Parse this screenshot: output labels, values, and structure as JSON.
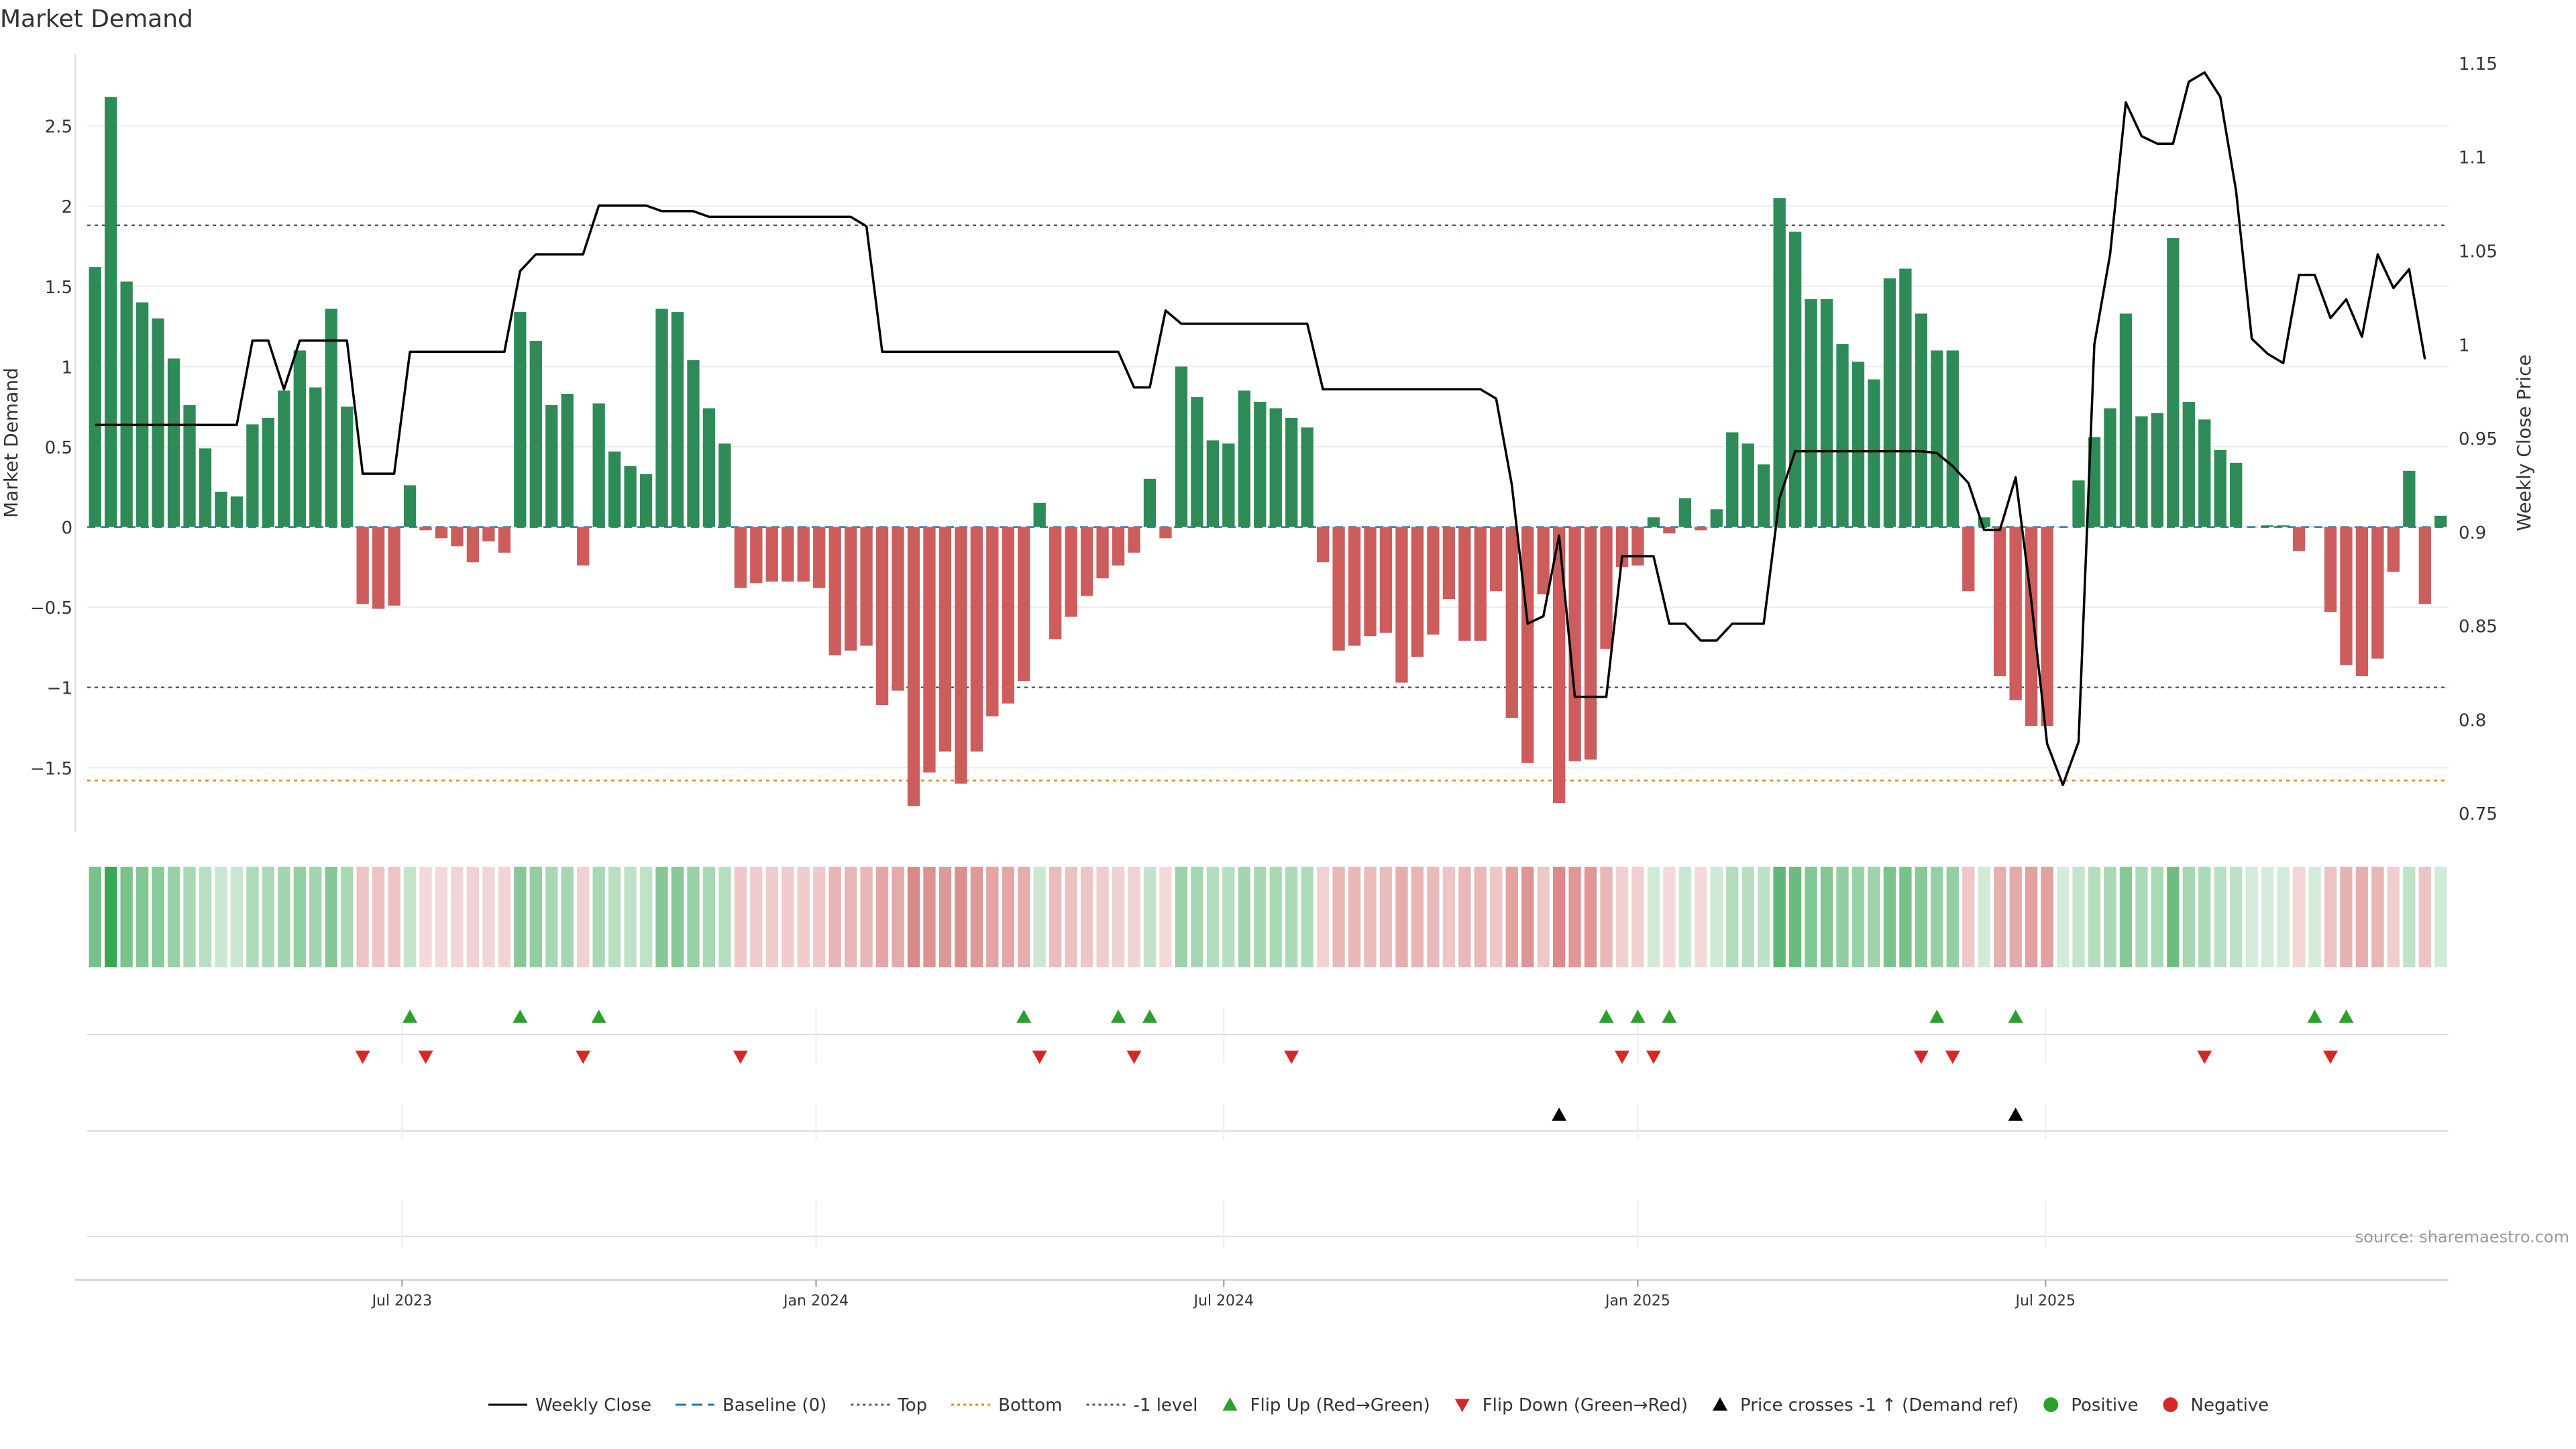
{
  "chart_data": {
    "type": "bar",
    "title": "Market Demand",
    "ylabel_left": "Market Demand",
    "ylabel_right": "Weekly Close Price",
    "ylim_left": [
      -1.9,
      2.95
    ],
    "ylim_right": [
      0.74,
      1.155
    ],
    "yticks_left": [
      -1.5,
      -1,
      -0.5,
      0,
      0.5,
      1,
      1.5,
      2,
      2.5
    ],
    "yticks_right": [
      0.75,
      0.8,
      0.85,
      0.9,
      0.95,
      1,
      1.05,
      1.1,
      1.15
    ],
    "ref_lines": {
      "top": 1.88,
      "bottom": -1.58,
      "minus_one": -1.0
    },
    "x_ticks": [
      {
        "label": "Jul 2023",
        "index": 20
      },
      {
        "label": "Jan 2024",
        "index": 46.3
      },
      {
        "label": "Jul 2024",
        "index": 72.2
      },
      {
        "label": "Jan 2025",
        "index": 98.5
      },
      {
        "label": "Jul 2025",
        "index": 124.4
      }
    ],
    "demand": [
      1.62,
      2.68,
      1.53,
      1.4,
      1.3,
      1.05,
      0.76,
      0.49,
      0.22,
      0.19,
      0.64,
      0.68,
      0.85,
      1.1,
      0.87,
      1.36,
      0.75,
      -0.48,
      -0.51,
      -0.49,
      0.26,
      -0.02,
      -0.07,
      -0.12,
      -0.22,
      -0.09,
      -0.16,
      1.34,
      1.16,
      0.76,
      0.83,
      -0.24,
      0.77,
      0.47,
      0.38,
      0.33,
      1.36,
      1.34,
      1.04,
      0.74,
      0.52,
      -0.38,
      -0.35,
      -0.34,
      -0.34,
      -0.34,
      -0.38,
      -0.8,
      -0.77,
      -0.74,
      -1.11,
      -1.02,
      -1.74,
      -1.53,
      -1.4,
      -1.6,
      -1.4,
      -1.18,
      -1.1,
      -0.96,
      0.15,
      -0.7,
      -0.56,
      -0.43,
      -0.32,
      -0.24,
      -0.16,
      0.3,
      -0.07,
      1.0,
      0.81,
      0.54,
      0.52,
      0.85,
      0.78,
      0.74,
      0.68,
      0.62,
      -0.22,
      -0.77,
      -0.74,
      -0.68,
      -0.66,
      -0.97,
      -0.81,
      -0.67,
      -0.45,
      -0.71,
      -0.71,
      -0.4,
      -1.19,
      -1.47,
      -0.42,
      -1.72,
      -1.46,
      -1.45,
      -0.76,
      -0.25,
      -0.24,
      0.06,
      -0.04,
      0.18,
      -0.02,
      0.11,
      0.59,
      0.52,
      0.39,
      2.05,
      1.84,
      1.42,
      1.42,
      1.14,
      1.03,
      0.92,
      1.55,
      1.61,
      1.33,
      1.1,
      1.1,
      -0.4,
      0.06,
      -0.93,
      -1.08,
      -1.24,
      -1.24,
      0.0,
      0.29,
      0.56,
      0.74,
      1.33,
      0.69,
      0.71,
      1.8,
      0.78,
      0.67,
      0.48,
      0.4,
      0.0,
      0.01,
      0.01,
      -0.15,
      0.0,
      -0.53,
      -0.86,
      -0.93,
      -0.82,
      -0.28,
      0.35,
      -0.48,
      0.07
    ],
    "weekly_close": [
      0.957,
      0.957,
      0.957,
      0.957,
      0.957,
      0.957,
      0.957,
      0.957,
      0.957,
      0.957,
      1.002,
      1.002,
      0.976,
      1.002,
      1.002,
      1.002,
      1.002,
      0.931,
      0.931,
      0.931,
      0.996,
      0.996,
      0.996,
      0.996,
      0.996,
      0.996,
      0.996,
      1.039,
      1.048,
      1.048,
      1.048,
      1.048,
      1.074,
      1.074,
      1.074,
      1.074,
      1.071,
      1.071,
      1.071,
      1.068,
      1.068,
      1.068,
      1.068,
      1.068,
      1.068,
      1.068,
      1.068,
      1.068,
      1.068,
      1.063,
      0.996,
      0.996,
      0.996,
      0.996,
      0.996,
      0.996,
      0.996,
      0.996,
      0.996,
      0.996,
      0.996,
      0.996,
      0.996,
      0.996,
      0.996,
      0.996,
      0.977,
      0.977,
      1.018,
      1.011,
      1.011,
      1.011,
      1.011,
      1.011,
      1.011,
      1.011,
      1.011,
      1.011,
      0.976,
      0.976,
      0.976,
      0.976,
      0.976,
      0.976,
      0.976,
      0.976,
      0.976,
      0.976,
      0.976,
      0.971,
      0.925,
      0.851,
      0.855,
      0.898,
      0.812,
      0.812,
      0.812,
      0.887,
      0.887,
      0.887,
      0.851,
      0.851,
      0.842,
      0.842,
      0.851,
      0.851,
      0.851,
      0.918,
      0.943,
      0.943,
      0.943,
      0.943,
      0.943,
      0.943,
      0.943,
      0.943,
      0.943,
      0.942,
      0.935,
      0.926,
      0.901,
      0.901,
      0.929,
      0.863,
      0.787,
      0.765,
      0.788,
      1.0,
      1.048,
      1.129,
      1.111,
      1.107,
      1.107,
      1.14,
      1.145,
      1.132,
      1.082,
      1.003,
      0.995,
      0.99,
      1.037,
      1.037,
      1.014,
      1.024,
      1.004,
      1.048,
      1.03,
      1.04,
      0.992
    ],
    "flip_up_indices": [
      20,
      27,
      32,
      59,
      65,
      67,
      96,
      98,
      100,
      117,
      122,
      141,
      143
    ],
    "flip_down_indices": [
      17,
      21,
      31,
      41,
      60,
      66,
      76,
      97,
      99,
      116,
      118,
      134,
      142
    ],
    "price_cross_indices": [
      93,
      122
    ],
    "source": "source: sharemaestro.com",
    "legend": [
      {
        "label": "Weekly Close",
        "kind": "line-solid",
        "color": "#000000"
      },
      {
        "label": "Baseline (0)",
        "kind": "line-dashed",
        "color": "#1f77b4"
      },
      {
        "label": "Top",
        "kind": "line-dotted",
        "color": "#555577"
      },
      {
        "label": "Bottom",
        "kind": "line-dotted",
        "color": "#e08a1e"
      },
      {
        "label": "-1 level",
        "kind": "line-dotted",
        "color": "#555577"
      },
      {
        "label": "Flip Up (Red→Green)",
        "kind": "tri-up",
        "color": "#2ca02c"
      },
      {
        "label": "Flip Down (Green→Red)",
        "kind": "tri-down",
        "color": "#d62728"
      },
      {
        "label": "Price crosses -1 ↑ (Demand ref)",
        "kind": "tri-up",
        "color": "#000000"
      },
      {
        "label": "Positive",
        "kind": "dot",
        "color": "#2ca02c"
      },
      {
        "label": "Negative",
        "kind": "dot",
        "color": "#d62728"
      }
    ],
    "colors": {
      "positive_bar": "#2e8b57",
      "negative_bar": "#cd5c5c",
      "heat_positive": "#3aa655",
      "heat_negative": "#cd5c5c",
      "flip_up": "#2ca02c",
      "flip_down": "#d62728",
      "price_line": "#000000"
    }
  }
}
